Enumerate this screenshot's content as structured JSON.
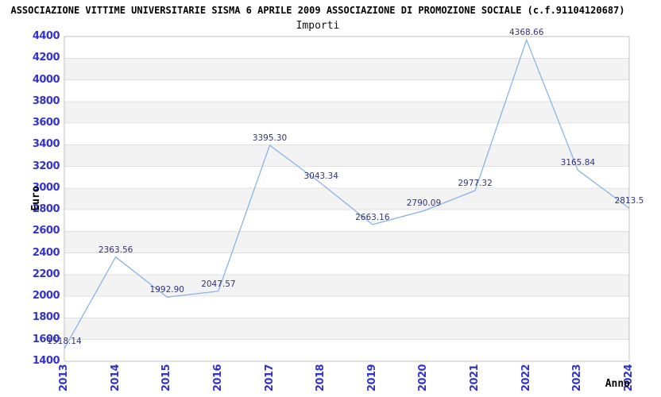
{
  "chart_data": {
    "type": "line",
    "title": "ASSOCIAZIONE VITTIME UNIVERSITARIE SISMA 6 APRILE 2009 ASSOCIAZIONE DI PROMOZIONE SOCIALE (c.f.91104120687)",
    "subtitle": "Importi",
    "xlabel": "Anno",
    "ylabel": "Euro",
    "categories": [
      "2013",
      "2014",
      "2015",
      "2016",
      "2017",
      "2018",
      "2019",
      "2020",
      "2021",
      "2022",
      "2023",
      "2024"
    ],
    "series": [
      {
        "name": "Importi",
        "values": [
          1518.14,
          2363.56,
          1992.9,
          2047.57,
          3395.3,
          3043.34,
          2663.16,
          2790.09,
          2977.32,
          4368.66,
          3165.84,
          2813.5
        ]
      }
    ],
    "point_labels": [
      "1518.14",
      "2363.56",
      "1992.90",
      "2047.57",
      "3395.30",
      "3043.34",
      "2663.16",
      "2790.09",
      "2977.32",
      "4368.66",
      "3165.84",
      "2813.5"
    ],
    "ylim": [
      1400,
      4400
    ],
    "ytick_step": 200,
    "grid": true,
    "band_fill": "alternating-horizontal",
    "legend": "none",
    "colors": {
      "line": "#85b2e8",
      "tick_label": "#3333cc",
      "data_label": "#333377",
      "band": "#f3f3f3",
      "gridline": "#e0e0e0",
      "border": "#c0c0c0",
      "title": "#000000",
      "background": "#ffffff"
    }
  }
}
